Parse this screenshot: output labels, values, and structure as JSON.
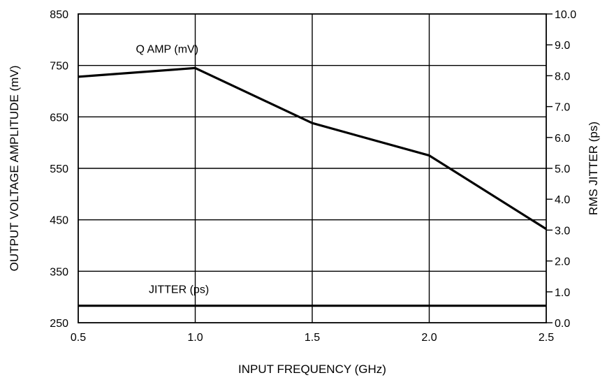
{
  "chart_data": {
    "type": "line",
    "xlabel": "INPUT FREQUENCY (GHz)",
    "ylabel": "OUTPUT VOLTAGE AMPLITUDE (mV)",
    "y2label": "RMS JITTER (ps)",
    "xlim": [
      0.5,
      2.5
    ],
    "ylim": [
      250,
      850
    ],
    "y2lim": [
      0.0,
      10.0
    ],
    "x_ticks": [
      "0.5",
      "1.0",
      "1.5",
      "2.0",
      "2.5"
    ],
    "y_ticks": [
      "250",
      "350",
      "450",
      "550",
      "650",
      "750",
      "850"
    ],
    "y2_ticks": [
      "0.0",
      "1.0",
      "2.0",
      "3.0",
      "4.0",
      "5.0",
      "6.0",
      "7.0",
      "8.0",
      "9.0",
      "10.0"
    ],
    "grid": true,
    "series": [
      {
        "name": "Q AMP (mV)",
        "axis": "left",
        "x": [
          0.5,
          1.0,
          1.5,
          2.0,
          2.5
        ],
        "values": [
          728,
          745,
          638,
          575,
          432
        ]
      },
      {
        "name": "JITTER (ps)",
        "axis": "right",
        "x": [
          0.5,
          2.5
        ],
        "values": [
          0.55,
          0.55
        ]
      }
    ],
    "annotations": [
      {
        "text": "Q AMP (mV)",
        "series": 0
      },
      {
        "text": "JITTER (ps)",
        "series": 1
      }
    ]
  }
}
